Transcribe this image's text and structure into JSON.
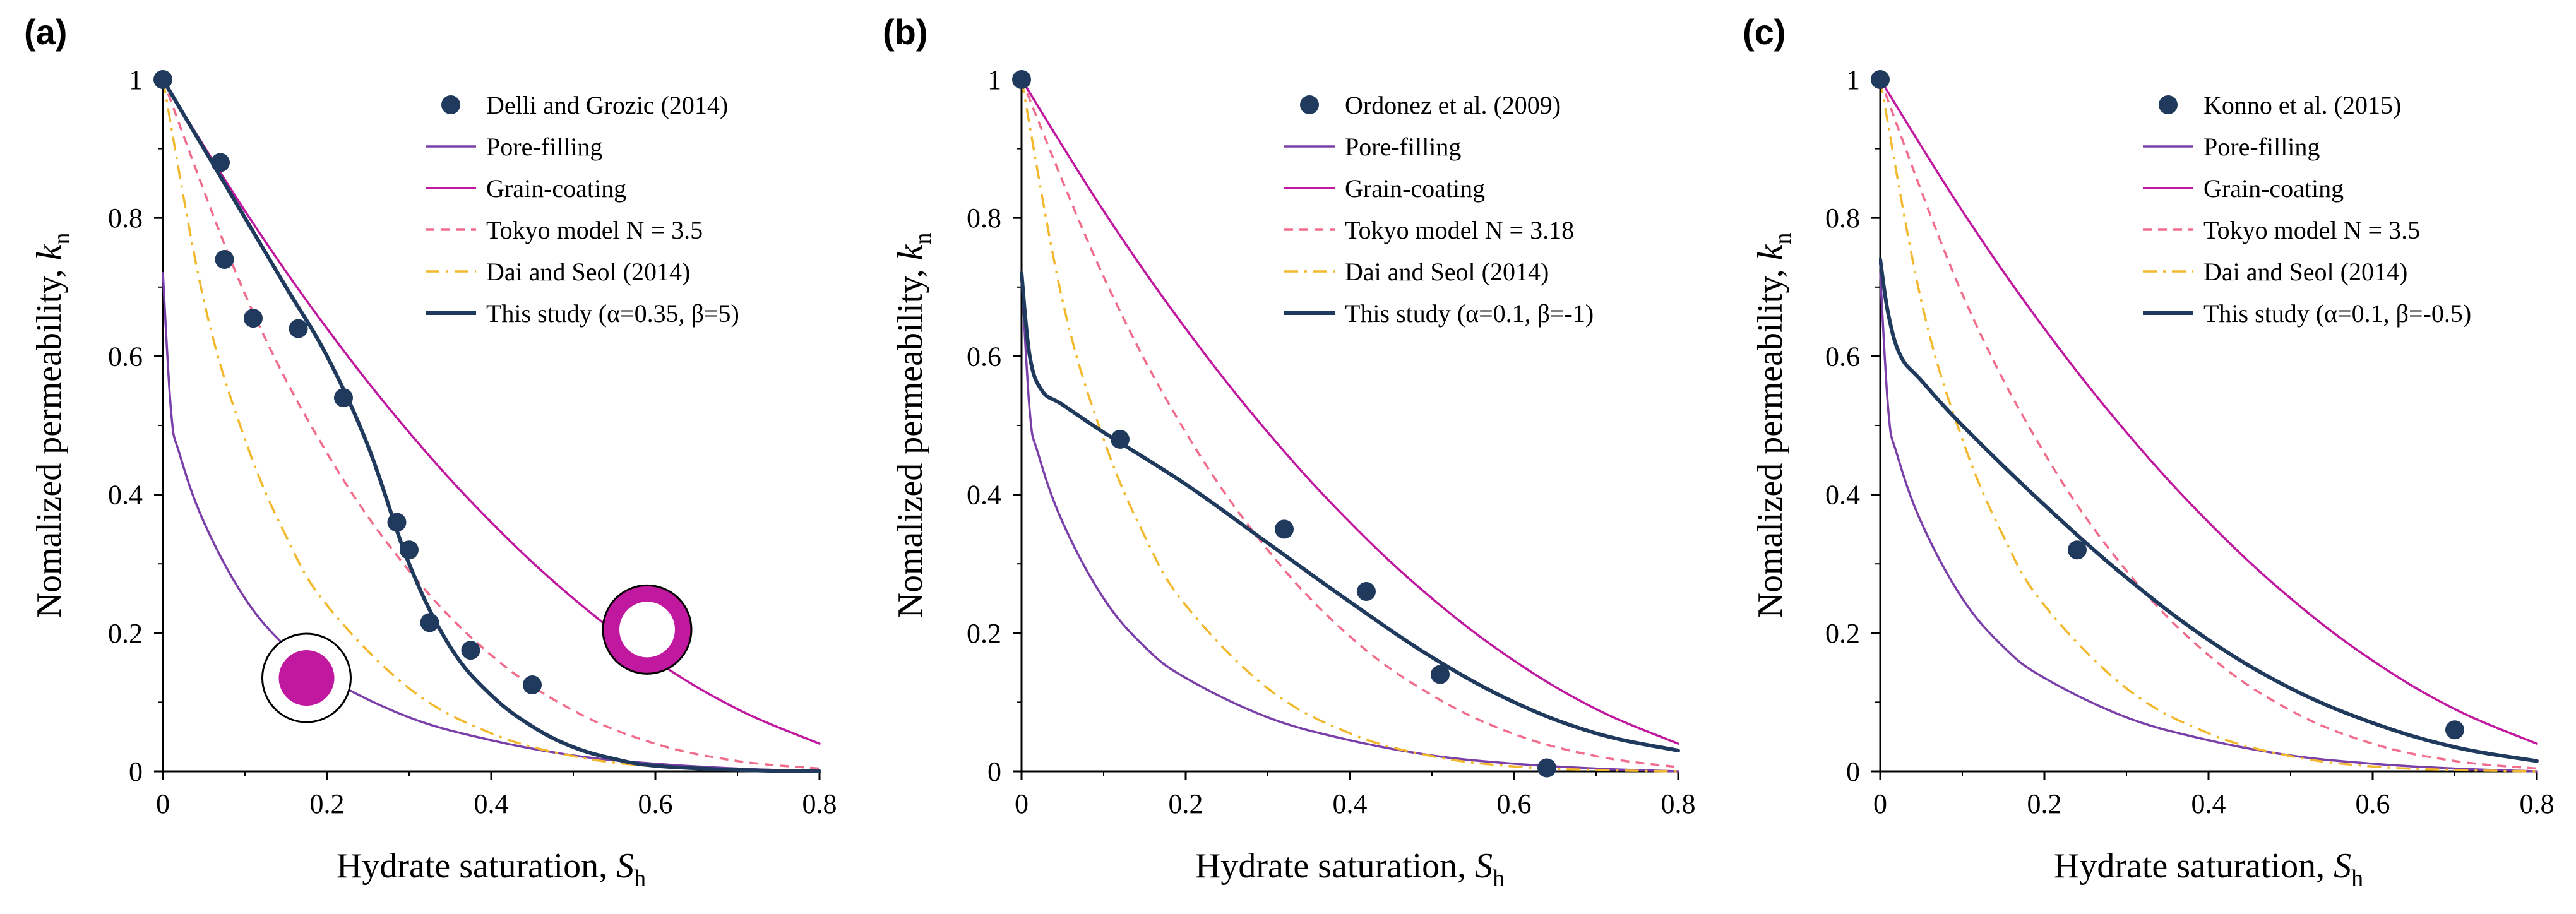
{
  "figure": {
    "x_unit": "Hydrate saturation, ",
    "x_symbol": "S",
    "x_sub": "h",
    "y_unit": "Nomalized permeability, ",
    "y_symbol": "k",
    "y_sub": "n"
  },
  "colors": {
    "pore_filling": "#7a3fa8",
    "grain_coating": "#c0189f",
    "tokyo": "#f06d8c",
    "dai_seol": "#f2b82e",
    "this_study": "#1f3a5c",
    "data_points": "#1f3a5c",
    "axis": "#000000"
  },
  "chart_data": [
    {
      "type": "line",
      "panel_label": "(a)",
      "xlabel": "Hydrate saturation, Sh",
      "ylabel": "Nomalized permeability, kn",
      "xlim": [
        0,
        0.8
      ],
      "ylim": [
        0,
        1
      ],
      "x_ticks": [
        "0",
        "0.2",
        "0.4",
        "0.6",
        "0.8"
      ],
      "y_ticks": [
        "0",
        "0.2",
        "0.4",
        "0.6",
        "0.8",
        "1"
      ],
      "legend_position": "top-right",
      "scatter": {
        "name": "Delli and Grozic (2014)",
        "x": [
          0,
          0.07,
          0.075,
          0.11,
          0.165,
          0.22,
          0.285,
          0.3,
          0.325,
          0.375,
          0.45
        ],
        "y": [
          1.0,
          0.88,
          0.74,
          0.655,
          0.64,
          0.54,
          0.36,
          0.32,
          0.215,
          0.175,
          0.125
        ]
      },
      "series": [
        {
          "name": "Pore-filling",
          "style": "solid",
          "color_key": "pore_filling",
          "x_start": 0,
          "x": [
            0,
            0.01,
            0.02,
            0.05,
            0.1,
            0.15,
            0.2,
            0.3,
            0.4,
            0.5,
            0.6,
            0.7,
            0.8
          ],
          "y": [
            0.72,
            0.52,
            0.46,
            0.36,
            0.25,
            0.18,
            0.135,
            0.078,
            0.045,
            0.023,
            0.011,
            0.004,
            0.0
          ]
        },
        {
          "name": "Grain-coating",
          "style": "solid",
          "color_key": "grain_coating",
          "x": [
            0,
            0.1,
            0.2,
            0.3,
            0.4,
            0.5,
            0.6,
            0.7,
            0.8
          ],
          "y": [
            1.0,
            0.81,
            0.64,
            0.49,
            0.36,
            0.25,
            0.16,
            0.09,
            0.04
          ]
        },
        {
          "name": "Tokyo model N = 3.5",
          "style": "dashed",
          "color_key": "tokyo",
          "x": [
            0,
            0.1,
            0.2,
            0.3,
            0.4,
            0.5,
            0.6,
            0.7,
            0.8
          ],
          "y": [
            1.0,
            0.69,
            0.46,
            0.29,
            0.168,
            0.088,
            0.04,
            0.015,
            0.004
          ]
        },
        {
          "name": "Dai and Seol (2014)",
          "style": "dashdot",
          "color_key": "dai_seol",
          "x": [
            0,
            0.05,
            0.1,
            0.15,
            0.2,
            0.3,
            0.4,
            0.5,
            0.6,
            0.7,
            0.8
          ],
          "y": [
            1.0,
            0.68,
            0.48,
            0.34,
            0.24,
            0.12,
            0.055,
            0.022,
            0.007,
            0.002,
            0.0
          ]
        },
        {
          "name": "This study (α=0.35, β=5)",
          "style": "solid-bold",
          "color_key": "this_study",
          "x": [
            0,
            0.05,
            0.1,
            0.15,
            0.2,
            0.25,
            0.3,
            0.35,
            0.4,
            0.45,
            0.5,
            0.55,
            0.6,
            0.7,
            0.8
          ],
          "y": [
            1.0,
            0.9,
            0.8,
            0.7,
            0.6,
            0.47,
            0.3,
            0.18,
            0.11,
            0.065,
            0.035,
            0.018,
            0.008,
            0.002,
            0.0
          ]
        }
      ],
      "annotations": [
        {
          "name": "pore-filling-symbol",
          "x": 0.175,
          "y": 0.135,
          "kind": "filled-center"
        },
        {
          "name": "grain-coating-symbol",
          "x": 0.59,
          "y": 0.205,
          "kind": "ring"
        }
      ]
    },
    {
      "type": "line",
      "panel_label": "(b)",
      "xlabel": "Hydrate saturation, Sh",
      "ylabel": "Nomalized permeability, kn",
      "xlim": [
        0,
        0.8
      ],
      "ylim": [
        0,
        1
      ],
      "x_ticks": [
        "0",
        "0.2",
        "0.4",
        "0.6",
        "0.8"
      ],
      "y_ticks": [
        "0",
        "0.2",
        "0.4",
        "0.6",
        "0.8",
        "1"
      ],
      "legend_position": "top-right",
      "scatter": {
        "name": "Ordonez et al. (2009)",
        "x": [
          0,
          0.12,
          0.32,
          0.42,
          0.51,
          0.64
        ],
        "y": [
          1.0,
          0.48,
          0.35,
          0.26,
          0.14,
          0.005
        ]
      },
      "series": [
        {
          "name": "Pore-filling",
          "style": "solid",
          "color_key": "pore_filling",
          "x": [
            0,
            0.01,
            0.02,
            0.05,
            0.1,
            0.15,
            0.2,
            0.3,
            0.4,
            0.5,
            0.6,
            0.7,
            0.8
          ],
          "y": [
            0.72,
            0.52,
            0.46,
            0.36,
            0.25,
            0.18,
            0.135,
            0.078,
            0.045,
            0.023,
            0.011,
            0.004,
            0.0
          ]
        },
        {
          "name": "Grain-coating",
          "style": "solid",
          "color_key": "grain_coating",
          "x": [
            0,
            0.1,
            0.2,
            0.3,
            0.4,
            0.5,
            0.6,
            0.7,
            0.8
          ],
          "y": [
            1.0,
            0.81,
            0.64,
            0.49,
            0.36,
            0.25,
            0.16,
            0.09,
            0.04
          ]
        },
        {
          "name": "Tokyo model N = 3.18",
          "style": "dashed",
          "color_key": "tokyo",
          "x": [
            0,
            0.1,
            0.2,
            0.3,
            0.4,
            0.5,
            0.6,
            0.7,
            0.8
          ],
          "y": [
            1.0,
            0.715,
            0.49,
            0.32,
            0.195,
            0.11,
            0.054,
            0.022,
            0.006
          ]
        },
        {
          "name": "Dai and Seol (2014)",
          "style": "dashdot",
          "color_key": "dai_seol",
          "x": [
            0,
            0.05,
            0.1,
            0.15,
            0.2,
            0.3,
            0.4,
            0.5,
            0.6,
            0.7,
            0.8
          ],
          "y": [
            1.0,
            0.68,
            0.48,
            0.34,
            0.24,
            0.12,
            0.055,
            0.022,
            0.007,
            0.002,
            0.0
          ]
        },
        {
          "name": "This study (α=0.1, β=-1)",
          "style": "solid-bold",
          "color_key": "this_study",
          "x": [
            0,
            0.01,
            0.025,
            0.05,
            0.1,
            0.2,
            0.3,
            0.4,
            0.5,
            0.6,
            0.7,
            0.8
          ],
          "y": [
            0.72,
            0.6,
            0.55,
            0.53,
            0.49,
            0.415,
            0.33,
            0.245,
            0.165,
            0.1,
            0.055,
            0.03
          ]
        }
      ]
    },
    {
      "type": "line",
      "panel_label": "(c)",
      "xlabel": "Hydrate saturation, Sh",
      "ylabel": "Nomalized permeability, kn",
      "xlim": [
        0,
        0.8
      ],
      "ylim": [
        0,
        1
      ],
      "x_ticks": [
        "0",
        "0.2",
        "0.4",
        "0.6",
        "0.8"
      ],
      "y_ticks": [
        "0",
        "0.2",
        "0.4",
        "0.6",
        "0.8",
        "1"
      ],
      "legend_position": "top-right",
      "scatter": {
        "name": "Konno et al. (2015)",
        "x": [
          0,
          0.24,
          0.7
        ],
        "y": [
          1.0,
          0.32,
          0.06
        ]
      },
      "series": [
        {
          "name": "Pore-filling",
          "style": "solid",
          "color_key": "pore_filling",
          "x": [
            0,
            0.01,
            0.02,
            0.05,
            0.1,
            0.15,
            0.2,
            0.3,
            0.4,
            0.5,
            0.6,
            0.7,
            0.8
          ],
          "y": [
            0.72,
            0.52,
            0.46,
            0.36,
            0.25,
            0.18,
            0.135,
            0.078,
            0.045,
            0.023,
            0.011,
            0.004,
            0.0
          ]
        },
        {
          "name": "Grain-coating",
          "style": "solid",
          "color_key": "grain_coating",
          "x": [
            0,
            0.1,
            0.2,
            0.3,
            0.4,
            0.5,
            0.6,
            0.7,
            0.8
          ],
          "y": [
            1.0,
            0.81,
            0.64,
            0.49,
            0.36,
            0.25,
            0.16,
            0.09,
            0.04
          ]
        },
        {
          "name": "Tokyo model N = 3.5",
          "style": "dashed",
          "color_key": "tokyo",
          "x": [
            0,
            0.1,
            0.2,
            0.3,
            0.4,
            0.5,
            0.6,
            0.7,
            0.8
          ],
          "y": [
            1.0,
            0.69,
            0.46,
            0.29,
            0.168,
            0.088,
            0.04,
            0.015,
            0.004
          ]
        },
        {
          "name": "Dai and Seol (2014)",
          "style": "dashdot",
          "color_key": "dai_seol",
          "x": [
            0,
            0.05,
            0.1,
            0.15,
            0.2,
            0.3,
            0.4,
            0.5,
            0.6,
            0.7,
            0.8
          ],
          "y": [
            1.0,
            0.68,
            0.48,
            0.34,
            0.24,
            0.12,
            0.055,
            0.022,
            0.007,
            0.002,
            0.0
          ]
        },
        {
          "name": "This study (α=0.1, β=-0.5)",
          "style": "solid-bold",
          "color_key": "this_study",
          "x": [
            0,
            0.01,
            0.025,
            0.05,
            0.1,
            0.2,
            0.3,
            0.4,
            0.5,
            0.6,
            0.7,
            0.8
          ],
          "y": [
            0.74,
            0.66,
            0.6,
            0.565,
            0.5,
            0.385,
            0.28,
            0.19,
            0.12,
            0.07,
            0.035,
            0.015
          ]
        }
      ]
    }
  ]
}
